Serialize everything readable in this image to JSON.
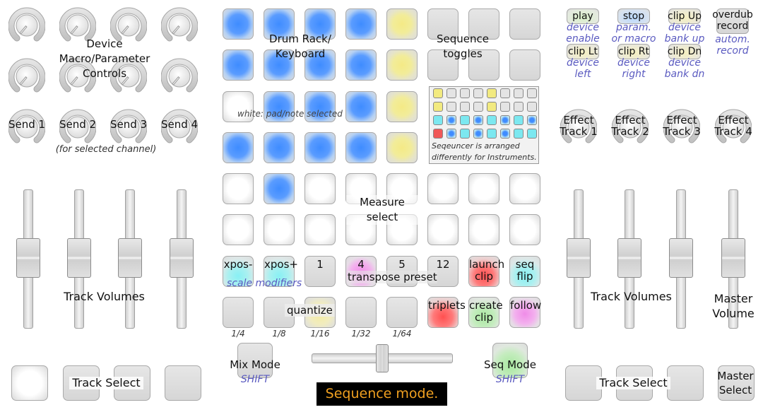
{
  "colors": {
    "pad_blue": "#4f95ff",
    "pad_yellow": "#f3ec8f",
    "pad_pink": "#f08ce8",
    "pad_cyan": "#88f0f4",
    "pad_red": "#ff5050",
    "pad_green": "#a8e8a0",
    "hint_text": "#5a5ac0",
    "status_bg": "#000000",
    "status_text": "#f0a020"
  },
  "left": {
    "device_label": "Device\nMacro/Parameter\nControls",
    "sends": [
      "Send 1",
      "Send 2",
      "Send 3",
      "Send 4"
    ],
    "sends_note": "(for selected channel)",
    "track_volumes": "Track Volumes",
    "track_select": "Track Select"
  },
  "grid": {
    "drum_rack": "Drum Rack/\nKeyboard",
    "sequence_toggles": "Sequence\ntoggles",
    "white_note": "white: pad/note selected",
    "sequencer_note": "Seqeuncer is arranged\ndifferently for Instruments.",
    "measure_select": "Measure\nselect",
    "pad_colors": [
      [
        "blue",
        "blue",
        "blue",
        "blue",
        "yellow",
        "gray",
        "gray",
        "gray"
      ],
      [
        "blue",
        "blue",
        "blue",
        "blue",
        "yellow",
        "gray",
        "gray",
        "gray"
      ],
      [
        "white",
        "blue",
        "blue",
        "blue",
        "yellow",
        "seq",
        "seq",
        "seq"
      ],
      [
        "blue",
        "blue",
        "blue",
        "blue",
        "yellow",
        "seq",
        "seq",
        "seq"
      ],
      [
        "white",
        "blue",
        "white",
        "white",
        "white",
        "white",
        "white",
        "white"
      ],
      [
        "white",
        "white",
        "white",
        "white",
        "white",
        "white",
        "white",
        "white"
      ]
    ],
    "row7": [
      {
        "label": "xpos-",
        "color": "cyan"
      },
      {
        "label": "xpos+",
        "color": "cyan"
      },
      {
        "label": "1",
        "color": "gray"
      },
      {
        "label": "4",
        "color": "pink"
      },
      {
        "label": "5",
        "color": "gray"
      },
      {
        "label": "12",
        "color": "gray"
      },
      {
        "label": "launch\nclip",
        "color": "red"
      },
      {
        "label": "seq\nflip",
        "color": "cyan"
      }
    ],
    "scale_modifiers": "scale modifiers",
    "transpose_preset": "transpose preset",
    "row8": [
      {
        "label": "",
        "color": "gray"
      },
      {
        "label": "",
        "color": "gray"
      },
      {
        "label": "",
        "color": "lightyellow"
      },
      {
        "label": "",
        "color": "gray"
      },
      {
        "label": "",
        "color": "gray"
      },
      {
        "label": "triplets",
        "color": "red"
      },
      {
        "label": "create\nclip",
        "color": "green"
      },
      {
        "label": "follow",
        "color": "pink"
      }
    ],
    "quantize": "quantize",
    "quant_values": [
      "1/4",
      "1/8",
      "1/16",
      "1/32",
      "1/64"
    ],
    "sequencer_grid": [
      [
        "yellow",
        "gray",
        "gray",
        "gray",
        "yellow",
        "gray",
        "gray",
        "gray"
      ],
      [
        "yellow",
        "gray",
        "gray",
        "gray",
        "yellow",
        "gray",
        "gray",
        "gray"
      ],
      [
        "cyan",
        "blue",
        "cyan",
        "blue",
        "cyan",
        "blue",
        "cyan",
        "blue"
      ],
      [
        "red",
        "blue",
        "cyan",
        "blue",
        "cyan",
        "blue",
        "cyan",
        "cyan"
      ]
    ]
  },
  "bottom": {
    "mix_mode": "Mix Mode",
    "mix_shift": "SHIFT",
    "seq_mode": "Seq Mode",
    "seq_shift": "SHIFT",
    "status": "Sequence mode."
  },
  "right": {
    "buttons": [
      {
        "label": "play",
        "hint": "device\nenable",
        "color": "green"
      },
      {
        "label": "stop",
        "hint": "param.\nor macro",
        "color": "blue"
      },
      {
        "label": "clip Up",
        "hint": "device\nbank up",
        "color": "yellow"
      },
      {
        "label": "overdub\nrecord",
        "hint": "autom.\nrecord",
        "color": "gray"
      },
      {
        "label": "clip Lt",
        "hint": "device\nleft",
        "color": "yellow"
      },
      {
        "label": "clip Rt",
        "hint": "device\nright",
        "color": "yellow"
      },
      {
        "label": "clip Dn",
        "hint": "device\nbank dn",
        "color": "yellow"
      }
    ],
    "effects": [
      "Effect\nTrack 1",
      "Effect\nTrack 2",
      "Effect\nTrack 3",
      "Effect\nTrack 4"
    ],
    "track_volumes": "Track Volumes",
    "master_volume": "Master\nVolume",
    "track_select": "Track Select",
    "master_select": "Master\nSelect"
  }
}
